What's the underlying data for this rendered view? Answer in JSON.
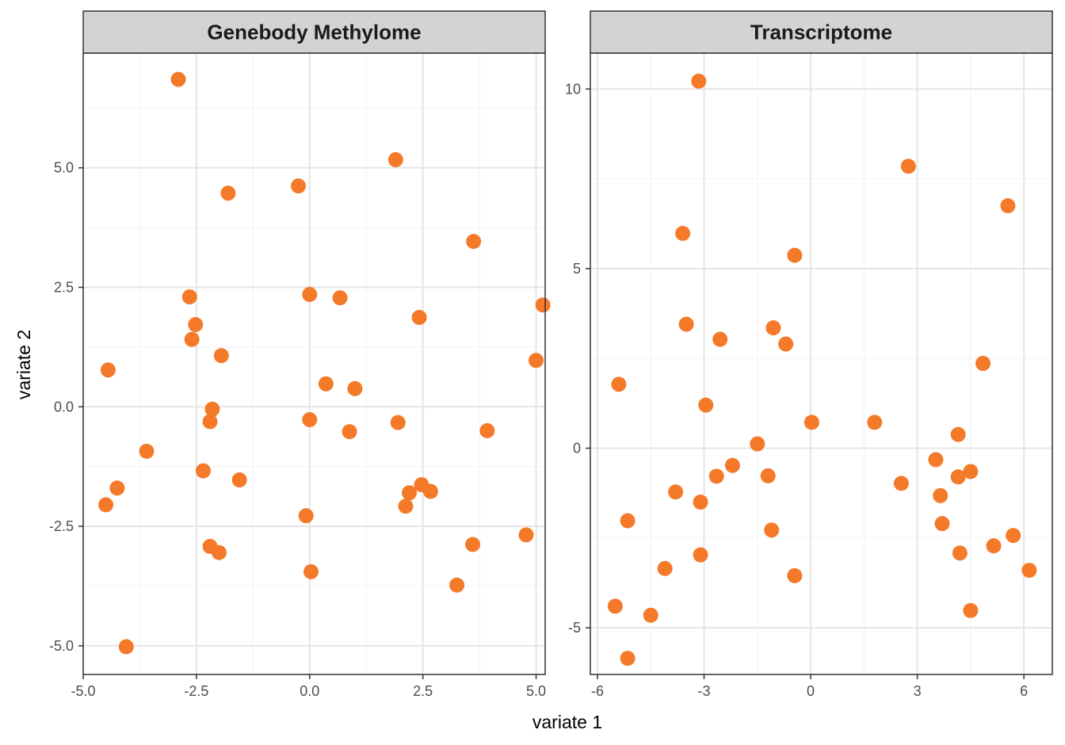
{
  "chart_data": {
    "type": "scatter",
    "xlabel": "variate 1",
    "ylabel": "variate 2",
    "point_color": "#F47A2A",
    "panel_border_color": "#333333",
    "strip_fill": "#D3D3D3",
    "grid_major_color": "#E5E5E5",
    "grid_minor_color": "#F2F2F2",
    "panels": [
      {
        "title": "Genebody Methylome",
        "xlim": [
          -5.0,
          5.2
        ],
        "ylim": [
          -5.6,
          7.4
        ],
        "xticks": [
          -5.0,
          -2.5,
          0.0,
          2.5,
          5.0
        ],
        "xtick_labels": [
          "-5.0",
          "-2.5",
          "0.0",
          "2.5",
          "5.0"
        ],
        "yticks": [
          -5.0,
          -2.5,
          0.0,
          2.5,
          5.0
        ],
        "ytick_labels": [
          "-5.0",
          "-2.5",
          "0.0",
          "2.5",
          "5.0"
        ],
        "points": [
          {
            "x": -2.9,
            "y": 6.85
          },
          {
            "x": 1.9,
            "y": 5.17
          },
          {
            "x": -0.25,
            "y": 4.62
          },
          {
            "x": -1.8,
            "y": 4.47
          },
          {
            "x": 3.62,
            "y": 3.46
          },
          {
            "x": -2.65,
            "y": 2.3
          },
          {
            "x": 0.0,
            "y": 2.35
          },
          {
            "x": 0.67,
            "y": 2.28
          },
          {
            "x": 5.15,
            "y": 2.13
          },
          {
            "x": 2.42,
            "y": 1.87
          },
          {
            "x": -2.52,
            "y": 1.72
          },
          {
            "x": -2.6,
            "y": 1.41
          },
          {
            "x": -1.95,
            "y": 1.07
          },
          {
            "x": 5.0,
            "y": 0.97
          },
          {
            "x": -4.45,
            "y": 0.77
          },
          {
            "x": 0.36,
            "y": 0.48
          },
          {
            "x": 1.0,
            "y": 0.38
          },
          {
            "x": -2.15,
            "y": -0.05
          },
          {
            "x": -2.2,
            "y": -0.31
          },
          {
            "x": 0.0,
            "y": -0.27
          },
          {
            "x": 1.95,
            "y": -0.33
          },
          {
            "x": 0.88,
            "y": -0.52
          },
          {
            "x": 3.92,
            "y": -0.5
          },
          {
            "x": -3.6,
            "y": -0.93
          },
          {
            "x": -2.35,
            "y": -1.34
          },
          {
            "x": -1.55,
            "y": -1.53
          },
          {
            "x": -4.25,
            "y": -1.7
          },
          {
            "x": 2.47,
            "y": -1.63
          },
          {
            "x": 2.2,
            "y": -1.8
          },
          {
            "x": 2.67,
            "y": -1.77
          },
          {
            "x": -4.5,
            "y": -2.05
          },
          {
            "x": 2.12,
            "y": -2.08
          },
          {
            "x": -0.08,
            "y": -2.28
          },
          {
            "x": 4.78,
            "y": -2.68
          },
          {
            "x": 3.6,
            "y": -2.88
          },
          {
            "x": -2.2,
            "y": -2.92
          },
          {
            "x": -2.0,
            "y": -3.05
          },
          {
            "x": 0.03,
            "y": -3.45
          },
          {
            "x": 3.25,
            "y": -3.73
          },
          {
            "x": -4.05,
            "y": -5.02
          }
        ]
      },
      {
        "title": "Transcriptome",
        "xlim": [
          -6.2,
          6.8
        ],
        "ylim": [
          -6.3,
          11.0
        ],
        "xticks": [
          -6,
          -3,
          0,
          3,
          6
        ],
        "xtick_labels": [
          "-6",
          "-3",
          "0",
          "3",
          "6"
        ],
        "yticks": [
          -5,
          0,
          5,
          10
        ],
        "ytick_labels": [
          "-5",
          "0",
          "5",
          "10"
        ],
        "points": [
          {
            "x": -3.15,
            "y": 10.22
          },
          {
            "x": 2.75,
            "y": 7.85
          },
          {
            "x": 5.55,
            "y": 6.75
          },
          {
            "x": -3.6,
            "y": 5.98
          },
          {
            "x": -0.45,
            "y": 5.37
          },
          {
            "x": -3.5,
            "y": 3.45
          },
          {
            "x": -1.05,
            "y": 3.35
          },
          {
            "x": -2.55,
            "y": 3.03
          },
          {
            "x": -0.7,
            "y": 2.9
          },
          {
            "x": 4.85,
            "y": 2.36
          },
          {
            "x": -5.4,
            "y": 1.78
          },
          {
            "x": -2.95,
            "y": 1.2
          },
          {
            "x": 1.8,
            "y": 0.72
          },
          {
            "x": 0.03,
            "y": 0.72
          },
          {
            "x": 4.15,
            "y": 0.38
          },
          {
            "x": -1.5,
            "y": 0.12
          },
          {
            "x": 3.52,
            "y": -0.32
          },
          {
            "x": -2.2,
            "y": -0.48
          },
          {
            "x": 4.5,
            "y": -0.65
          },
          {
            "x": -2.65,
            "y": -0.78
          },
          {
            "x": -1.2,
            "y": -0.77
          },
          {
            "x": 4.15,
            "y": -0.8
          },
          {
            "x": 2.55,
            "y": -0.98
          },
          {
            "x": -3.8,
            "y": -1.22
          },
          {
            "x": 3.65,
            "y": -1.32
          },
          {
            "x": -3.1,
            "y": -1.5
          },
          {
            "x": -5.15,
            "y": -2.02
          },
          {
            "x": 3.7,
            "y": -2.1
          },
          {
            "x": -1.1,
            "y": -2.28
          },
          {
            "x": 5.7,
            "y": -2.43
          },
          {
            "x": 5.15,
            "y": -2.72
          },
          {
            "x": -3.1,
            "y": -2.97
          },
          {
            "x": 4.2,
            "y": -2.92
          },
          {
            "x": -4.1,
            "y": -3.35
          },
          {
            "x": 6.15,
            "y": -3.4
          },
          {
            "x": -0.45,
            "y": -3.55
          },
          {
            "x": -5.5,
            "y": -4.4
          },
          {
            "x": -4.5,
            "y": -4.65
          },
          {
            "x": 4.5,
            "y": -4.52
          },
          {
            "x": -5.15,
            "y": -5.85
          }
        ]
      }
    ]
  }
}
